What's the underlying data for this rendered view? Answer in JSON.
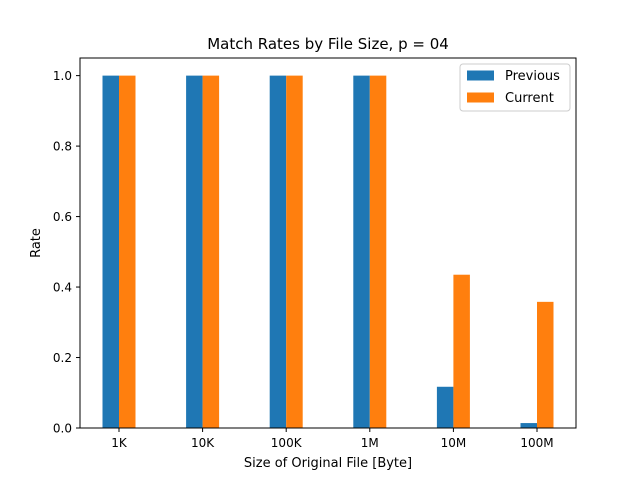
{
  "chart_data": {
    "type": "bar",
    "title": "Match Rates by File Size, p = 04",
    "xlabel": "Size of Original File [Byte]",
    "ylabel": "Rate",
    "categories": [
      "1K",
      "10K",
      "100K",
      "1M",
      "10M",
      "100M"
    ],
    "series": [
      {
        "name": "Previous",
        "color": "#1f77b4",
        "values": [
          1.0,
          1.0,
          1.0,
          1.0,
          0.117,
          0.014
        ]
      },
      {
        "name": "Current",
        "color": "#ff7f0e",
        "values": [
          1.0,
          1.0,
          1.0,
          1.0,
          0.435,
          0.358
        ]
      }
    ],
    "ylim": [
      0,
      1.05
    ],
    "yticks": [
      "0.0",
      "0.2",
      "0.4",
      "0.6",
      "0.8",
      "1.0"
    ],
    "grid": false,
    "legend_position": "top-right"
  }
}
